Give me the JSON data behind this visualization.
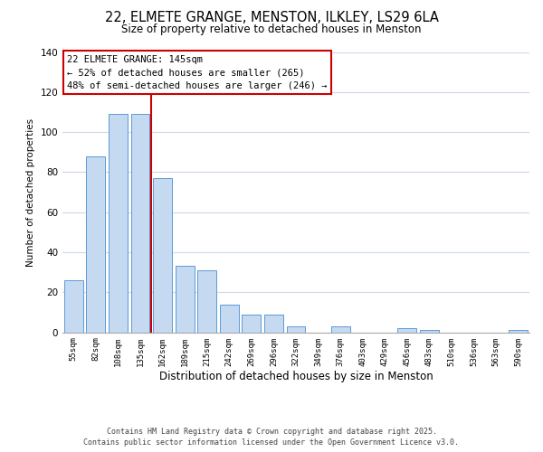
{
  "title": "22, ELMETE GRANGE, MENSTON, ILKLEY, LS29 6LA",
  "subtitle": "Size of property relative to detached houses in Menston",
  "xlabel": "Distribution of detached houses by size in Menston",
  "ylabel": "Number of detached properties",
  "categories": [
    "55sqm",
    "82sqm",
    "108sqm",
    "135sqm",
    "162sqm",
    "189sqm",
    "215sqm",
    "242sqm",
    "269sqm",
    "296sqm",
    "322sqm",
    "349sqm",
    "376sqm",
    "403sqm",
    "429sqm",
    "456sqm",
    "483sqm",
    "510sqm",
    "536sqm",
    "563sqm",
    "590sqm"
  ],
  "values": [
    26,
    88,
    109,
    109,
    77,
    33,
    31,
    14,
    9,
    9,
    3,
    0,
    3,
    0,
    0,
    2,
    1,
    0,
    0,
    0,
    1
  ],
  "bar_color": "#c5d9f1",
  "bar_edge_color": "#5b9bd5",
  "ylim": [
    0,
    140
  ],
  "yticks": [
    0,
    20,
    40,
    60,
    80,
    100,
    120,
    140
  ],
  "vline_x": 3.5,
  "vline_color": "#cc0000",
  "annotation_title": "22 ELMETE GRANGE: 145sqm",
  "annotation_line1": "← 52% of detached houses are smaller (265)",
  "annotation_line2": "48% of semi-detached houses are larger (246) →",
  "footer1": "Contains HM Land Registry data © Crown copyright and database right 2025.",
  "footer2": "Contains public sector information licensed under the Open Government Licence v3.0.",
  "background_color": "#ffffff",
  "grid_color": "#ccd8ea"
}
